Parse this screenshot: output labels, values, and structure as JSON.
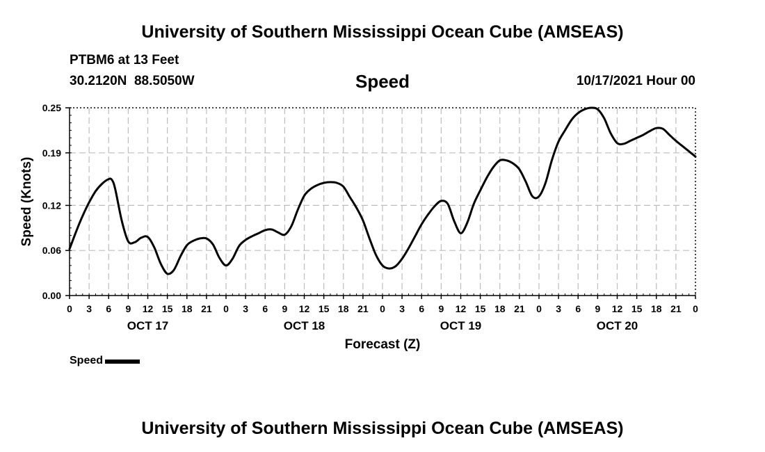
{
  "page": {
    "title": "University of Southern Mississippi Ocean Cube (AMSEAS)",
    "footer_title": "University of Southern Mississippi Ocean Cube (AMSEAS)",
    "station": "PTBM6 at 13 Feet",
    "coords": "30.2120N  88.5050W",
    "datetime": "10/17/2021 Hour 00"
  },
  "chart_data": {
    "type": "line",
    "title": "Speed",
    "xlabel": "Forecast (Z)",
    "ylabel": "Speed (Knots)",
    "xlim": [
      0,
      96
    ],
    "ylim": [
      0,
      0.25
    ],
    "yticks": [
      0.0,
      0.06,
      0.12,
      0.19,
      0.25
    ],
    "ytick_labels": [
      "0.00",
      "0.06",
      "0.12",
      "0.19",
      "0.25"
    ],
    "xticks": [
      0,
      3,
      6,
      9,
      12,
      15,
      18,
      21,
      24,
      27,
      30,
      33,
      36,
      39,
      42,
      45,
      48,
      51,
      54,
      57,
      60,
      63,
      66,
      69,
      72,
      75,
      78,
      81,
      84,
      87,
      90,
      93,
      96
    ],
    "xtick_labels": [
      "0",
      "3",
      "6",
      "9",
      "12",
      "15",
      "18",
      "21",
      "0",
      "3",
      "6",
      "9",
      "12",
      "15",
      "18",
      "21",
      "0",
      "3",
      "6",
      "9",
      "12",
      "15",
      "18",
      "21",
      "0",
      "3",
      "6",
      "9",
      "12",
      "15",
      "18",
      "21",
      "0"
    ],
    "day_labels": [
      {
        "label": "OCT 17",
        "hour": 12
      },
      {
        "label": "OCT 18",
        "hour": 36
      },
      {
        "label": "OCT 19",
        "hour": 60
      },
      {
        "label": "OCT 20",
        "hour": 84
      }
    ],
    "grid": true,
    "legend": {
      "label": "Speed",
      "position": "bottom-left",
      "color": "#000000"
    },
    "series": [
      {
        "name": "Speed",
        "color": "#000000",
        "x": [
          0,
          1,
          2,
          3,
          4,
          5,
          6,
          6.5,
          7,
          8,
          9,
          10,
          11,
          12,
          13,
          14,
          15,
          16,
          17,
          18,
          19,
          20,
          21,
          22,
          23,
          24,
          25,
          26,
          27,
          28,
          29,
          30,
          31,
          32,
          33,
          34,
          35,
          36,
          37,
          38,
          39,
          40,
          41,
          42,
          43,
          44,
          45,
          46,
          47,
          48,
          49,
          50,
          51,
          52,
          53,
          54,
          55,
          56,
          57,
          58,
          59,
          60,
          61,
          62,
          63,
          64,
          65,
          66,
          67,
          68,
          69,
          70,
          71,
          72,
          73,
          74,
          75,
          76,
          77,
          78,
          79,
          80,
          81,
          82,
          83,
          84,
          85,
          86,
          87,
          88,
          89,
          90,
          91,
          92,
          93,
          94,
          95,
          96
        ],
        "y": [
          0.062,
          0.085,
          0.106,
          0.124,
          0.139,
          0.149,
          0.155,
          0.154,
          0.142,
          0.1,
          0.072,
          0.071,
          0.077,
          0.078,
          0.064,
          0.042,
          0.029,
          0.034,
          0.052,
          0.067,
          0.073,
          0.076,
          0.076,
          0.068,
          0.05,
          0.04,
          0.049,
          0.066,
          0.074,
          0.079,
          0.083,
          0.087,
          0.088,
          0.084,
          0.081,
          0.092,
          0.114,
          0.133,
          0.142,
          0.147,
          0.15,
          0.151,
          0.15,
          0.145,
          0.131,
          0.117,
          0.1,
          0.076,
          0.054,
          0.04,
          0.036,
          0.039,
          0.049,
          0.063,
          0.079,
          0.095,
          0.108,
          0.119,
          0.126,
          0.122,
          0.099,
          0.083,
          0.097,
          0.122,
          0.14,
          0.157,
          0.171,
          0.18,
          0.18,
          0.176,
          0.168,
          0.151,
          0.132,
          0.132,
          0.15,
          0.181,
          0.205,
          0.22,
          0.234,
          0.243,
          0.248,
          0.25,
          0.248,
          0.236,
          0.216,
          0.203,
          0.202,
          0.206,
          0.21,
          0.214,
          0.219,
          0.223,
          0.222,
          0.214,
          0.206,
          0.199,
          0.192,
          0.185
        ]
      }
    ]
  }
}
